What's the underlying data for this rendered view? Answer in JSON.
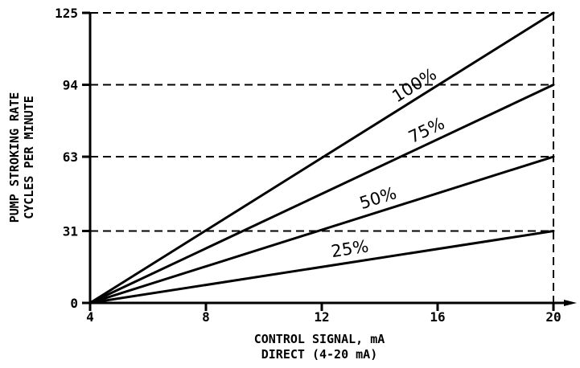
{
  "chart_data": {
    "type": "line",
    "title": "",
    "xlabel_lines": [
      "CONTROL SIGNAL, mA",
      "DIRECT (4-20 mA)"
    ],
    "ylabel_lines": [
      "PUMP STROKING RATE",
      "CYCLES PER MINUTE"
    ],
    "xlim": [
      4,
      20
    ],
    "ylim": [
      0,
      125
    ],
    "x_ticks": [
      4,
      8,
      12,
      16,
      20
    ],
    "x_tick_labels": [
      "4",
      "8",
      "12",
      "16",
      "20"
    ],
    "y_ticks": [
      0,
      31,
      63,
      94,
      125
    ],
    "y_tick_labels": [
      "0",
      "31",
      "63",
      "94",
      "125"
    ],
    "grid": "dashed at y ticks and x max",
    "colors": {
      "line": "#000000",
      "background": "#ffffff"
    },
    "series": [
      {
        "name": "100%",
        "x": [
          4,
          20
        ],
        "y": [
          0,
          125
        ]
      },
      {
        "name": "75%",
        "x": [
          4,
          20
        ],
        "y": [
          0,
          94
        ]
      },
      {
        "name": "50%",
        "x": [
          4,
          20
        ],
        "y": [
          0,
          63
        ]
      },
      {
        "name": "25%",
        "x": [
          4,
          20
        ],
        "y": [
          0,
          31
        ]
      }
    ]
  }
}
